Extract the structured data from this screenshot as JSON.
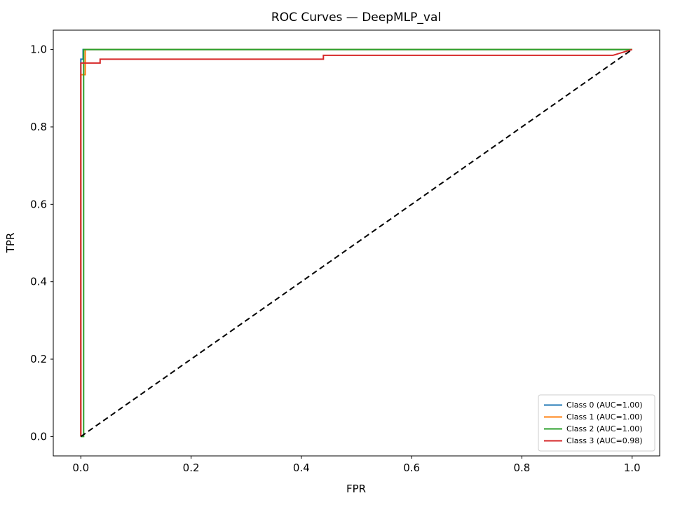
{
  "chart_data": {
    "type": "line",
    "title": "ROC Curves — DeepMLP_val",
    "xlabel": "FPR",
    "ylabel": "TPR",
    "xlim": [
      -0.05,
      1.05
    ],
    "ylim": [
      -0.05,
      1.05
    ],
    "xticks": [
      0.0,
      0.2,
      0.4,
      0.6,
      0.8,
      1.0
    ],
    "yticks": [
      0.0,
      0.2,
      0.4,
      0.6,
      0.8,
      1.0
    ],
    "grid": false,
    "legend_position": "lower right",
    "series": [
      {
        "name": "Class 0 (AUC=1.00)",
        "color": "#1f77b4",
        "line_style": "solid",
        "in_legend": true,
        "points": [
          [
            0.0,
            0.0
          ],
          [
            0.0,
            0.975
          ],
          [
            0.004,
            0.975
          ],
          [
            0.004,
            1.0
          ],
          [
            1.0,
            1.0
          ]
        ]
      },
      {
        "name": "Class 1 (AUC=1.00)",
        "color": "#ff7f0e",
        "line_style": "solid",
        "in_legend": true,
        "points": [
          [
            0.0,
            0.0
          ],
          [
            0.0,
            0.935
          ],
          [
            0.008,
            0.935
          ],
          [
            0.008,
            1.0
          ],
          [
            1.0,
            1.0
          ]
        ]
      },
      {
        "name": "Class 2 (AUC=1.00)",
        "color": "#2ca02c",
        "line_style": "solid",
        "in_legend": true,
        "points": [
          [
            0.0,
            0.0
          ],
          [
            0.005,
            0.0
          ],
          [
            0.005,
            1.0
          ],
          [
            1.0,
            1.0
          ]
        ]
      },
      {
        "name": "Class 3 (AUC=0.98)",
        "color": "#d62728",
        "line_style": "solid",
        "in_legend": true,
        "points": [
          [
            0.0,
            0.0
          ],
          [
            0.0,
            0.965
          ],
          [
            0.035,
            0.965
          ],
          [
            0.035,
            0.975
          ],
          [
            0.44,
            0.975
          ],
          [
            0.44,
            0.985
          ],
          [
            0.965,
            0.985
          ],
          [
            1.0,
            1.0
          ]
        ]
      },
      {
        "name": "Chance",
        "color": "#000000",
        "line_style": "dashed",
        "in_legend": false,
        "points": [
          [
            0.0,
            0.0
          ],
          [
            1.0,
            1.0
          ]
        ]
      }
    ]
  }
}
